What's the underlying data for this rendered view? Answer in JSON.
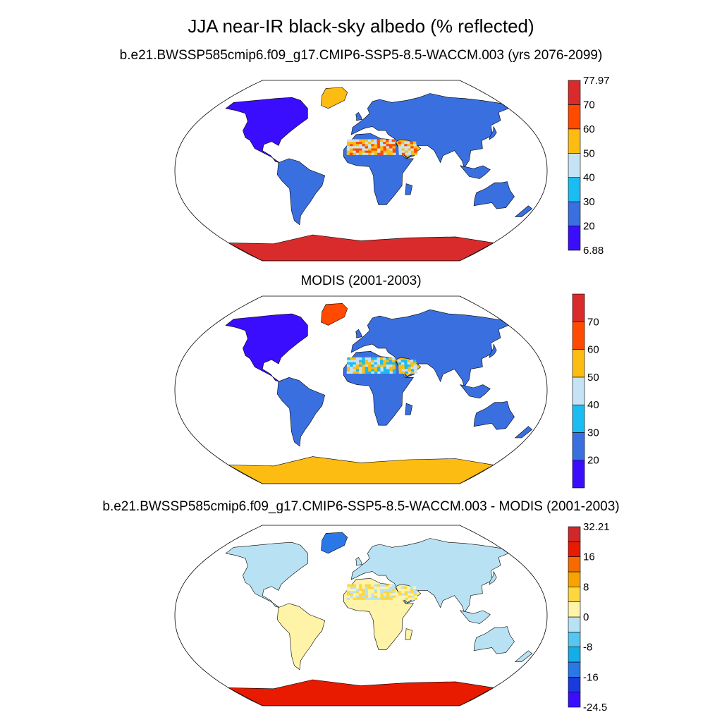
{
  "title": "JJA near-IR black-sky albedo (% reflected)",
  "panels": [
    {
      "title": "b.e21.BWSSP585cmip6.f09_g17.CMIP6-SSP5-8.5-WACCM.003 (yrs 2076-2099)",
      "colorbar": {
        "colors": [
          "#3b0dff",
          "#3a6fe0",
          "#19bdf2",
          "#c6e3f5",
          "#fcbc12",
          "#ff4a00",
          "#d92b2b"
        ],
        "labels": [
          "77.97",
          "70",
          "60",
          "50",
          "40",
          "30",
          "20",
          "6.88"
        ]
      }
    },
    {
      "title": "MODIS (2001-2003)",
      "colorbar": {
        "colors": [
          "#3b0dff",
          "#3a6fe0",
          "#19bdf2",
          "#c6e3f5",
          "#fcbc12",
          "#ff4a00",
          "#d92b2b"
        ],
        "labels": [
          "70",
          "60",
          "50",
          "40",
          "30",
          "20"
        ]
      }
    },
    {
      "title": "b.e21.BWSSP585cmip6.f09_g17.CMIP6-SSP5-8.5-WACCM.003 - MODIS (2001-2003)",
      "colorbar": {
        "colors": [
          "#3b0dff",
          "#1a3ae0",
          "#2a78e8",
          "#13aee8",
          "#55c6f0",
          "#b8e2f4",
          "#fff3a8",
          "#fdd640",
          "#f7a400",
          "#f66b00",
          "#e81a00",
          "#d02828"
        ],
        "labels": [
          "32.21",
          "16",
          "8",
          "0",
          "-8",
          "-16",
          "-24.5"
        ]
      }
    }
  ]
}
